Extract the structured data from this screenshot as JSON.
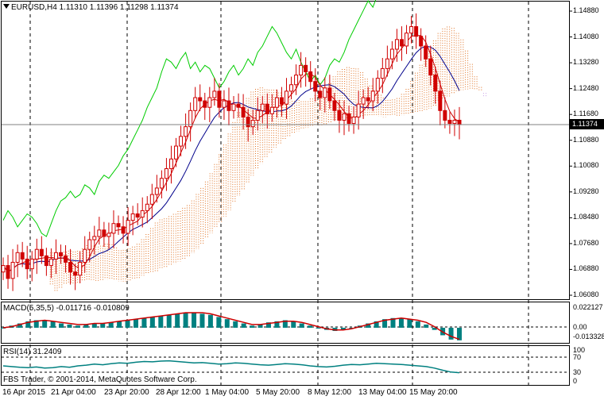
{
  "chart_header": {
    "symbol_line": "EURUSD,H4  1.11310 1.11396 1.11298 1.11374"
  },
  "price_axis": {
    "labels": [
      "1.14880",
      "1.14080",
      "1.13280",
      "1.12480",
      "1.11680",
      "1.10880",
      "1.10080",
      "1.09280",
      "1.08480",
      "1.07680",
      "1.06880",
      "1.06080"
    ],
    "current_price": "1.11374"
  },
  "macd": {
    "title": "MACD(5,35,5) -0.011716 -0.010809",
    "axis_labels": [
      "0.022127",
      "0.00",
      "-0.013328"
    ]
  },
  "rsi": {
    "title": "RSI(14) 31.2409",
    "axis_labels": [
      "100",
      "70",
      "30",
      "0"
    ]
  },
  "copyright": "FBS Trader, © 2001-2014, MetaQuotes Software Corp.",
  "time_axis": [
    "16 Apr 2015",
    "21 Apr 04:00",
    "23 Apr 20:00",
    "28 Apr 12:00",
    "1 May 04:00",
    "5 May 20:00",
    "8 May 12:00",
    "13 May 04:00",
    "15 May 20:00"
  ],
  "colors": {
    "tenkan": "#cc0000",
    "kijun": "#00008b",
    "chikou": "#00cc00",
    "cloud": "#e07020",
    "cloud_bear": "#c8a0e8",
    "candle": "#d00000",
    "macd_hist": "#008080",
    "macd_signal": "#cc0000",
    "rsi_line": "#008080"
  },
  "chart_data": [
    {
      "type": "candlestick",
      "title": "EURUSD,H4",
      "ylim": [
        1.0608,
        1.1488
      ],
      "close_path": [
        1.07,
        1.066,
        1.071,
        1.074,
        1.072,
        1.069,
        1.072,
        1.075,
        1.073,
        1.07,
        1.072,
        1.074,
        1.073,
        1.071,
        1.068,
        1.067,
        1.071,
        1.075,
        1.078,
        1.079,
        1.081,
        1.079,
        1.08,
        1.083,
        1.082,
        1.08,
        1.084,
        1.086,
        1.085,
        1.087,
        1.089,
        1.092,
        1.094,
        1.097,
        1.1,
        1.103,
        1.107,
        1.11,
        1.113,
        1.118,
        1.122,
        1.121,
        1.119,
        1.122,
        1.124,
        1.119,
        1.121,
        1.118,
        1.12,
        1.119,
        1.116,
        1.113,
        1.115,
        1.118,
        1.12,
        1.117,
        1.119,
        1.122,
        1.12,
        1.124,
        1.126,
        1.129,
        1.132,
        1.13,
        1.127,
        1.124,
        1.122,
        1.125,
        1.121,
        1.118,
        1.115,
        1.117,
        1.114,
        1.116,
        1.12,
        1.122,
        1.121,
        1.124,
        1.128,
        1.131,
        1.134,
        1.137,
        1.14,
        1.138,
        1.142,
        1.144,
        1.141,
        1.138,
        1.134,
        1.129,
        1.124,
        1.118,
        1.115,
        1.114,
        1.115,
        1.1137
      ]
    },
    {
      "type": "bar",
      "title": "MACD(5,35,5)",
      "ylim": [
        -0.013328,
        0.022127
      ],
      "histogram": [
        0.0,
        0.002,
        0.004,
        0.006,
        0.007,
        0.007,
        0.006,
        0.004,
        0.003,
        0.002,
        0.003,
        0.004,
        0.004,
        0.005,
        0.006,
        0.007,
        0.008,
        0.009,
        0.01,
        0.011,
        0.012,
        0.013,
        0.014,
        0.014,
        0.013,
        0.012,
        0.01,
        0.008,
        0.006,
        0.004,
        0.002,
        0.003,
        0.005,
        0.006,
        0.007,
        0.006,
        0.004,
        0.002,
        0.0,
        -0.002,
        -0.003,
        -0.002,
        0.0,
        0.002,
        0.004,
        0.006,
        0.008,
        0.009,
        0.009,
        0.008,
        0.006,
        0.003,
        -0.002,
        -0.007,
        -0.011,
        -0.0117
      ],
      "signal": [
        0.0,
        0.001,
        0.003,
        0.005,
        0.006,
        0.007,
        0.006,
        0.005,
        0.004,
        0.003,
        0.003,
        0.004,
        0.004,
        0.005,
        0.006,
        0.007,
        0.008,
        0.009,
        0.01,
        0.011,
        0.012,
        0.013,
        0.014,
        0.014,
        0.014,
        0.013,
        0.011,
        0.009,
        0.007,
        0.005,
        0.003,
        0.003,
        0.004,
        0.005,
        0.006,
        0.006,
        0.005,
        0.003,
        0.001,
        -0.001,
        -0.002,
        -0.002,
        -0.001,
        0.001,
        0.003,
        0.005,
        0.007,
        0.008,
        0.009,
        0.008,
        0.007,
        0.005,
        0.001,
        -0.004,
        -0.008,
        -0.0108
      ]
    },
    {
      "type": "line",
      "title": "RSI(14)",
      "ylim": [
        0,
        100
      ],
      "values": [
        50,
        48,
        46,
        45,
        47,
        44,
        45,
        48,
        46,
        50,
        52,
        55,
        53,
        56,
        58,
        57,
        60,
        62,
        61,
        63,
        64,
        62,
        60,
        58,
        59,
        57,
        55,
        56,
        58,
        57,
        55,
        53,
        52,
        54,
        56,
        55,
        53,
        50,
        48,
        47,
        49,
        52,
        54,
        53,
        55,
        57,
        56,
        55,
        54,
        52,
        50,
        48,
        44,
        38,
        33,
        31.2
      ]
    }
  ]
}
